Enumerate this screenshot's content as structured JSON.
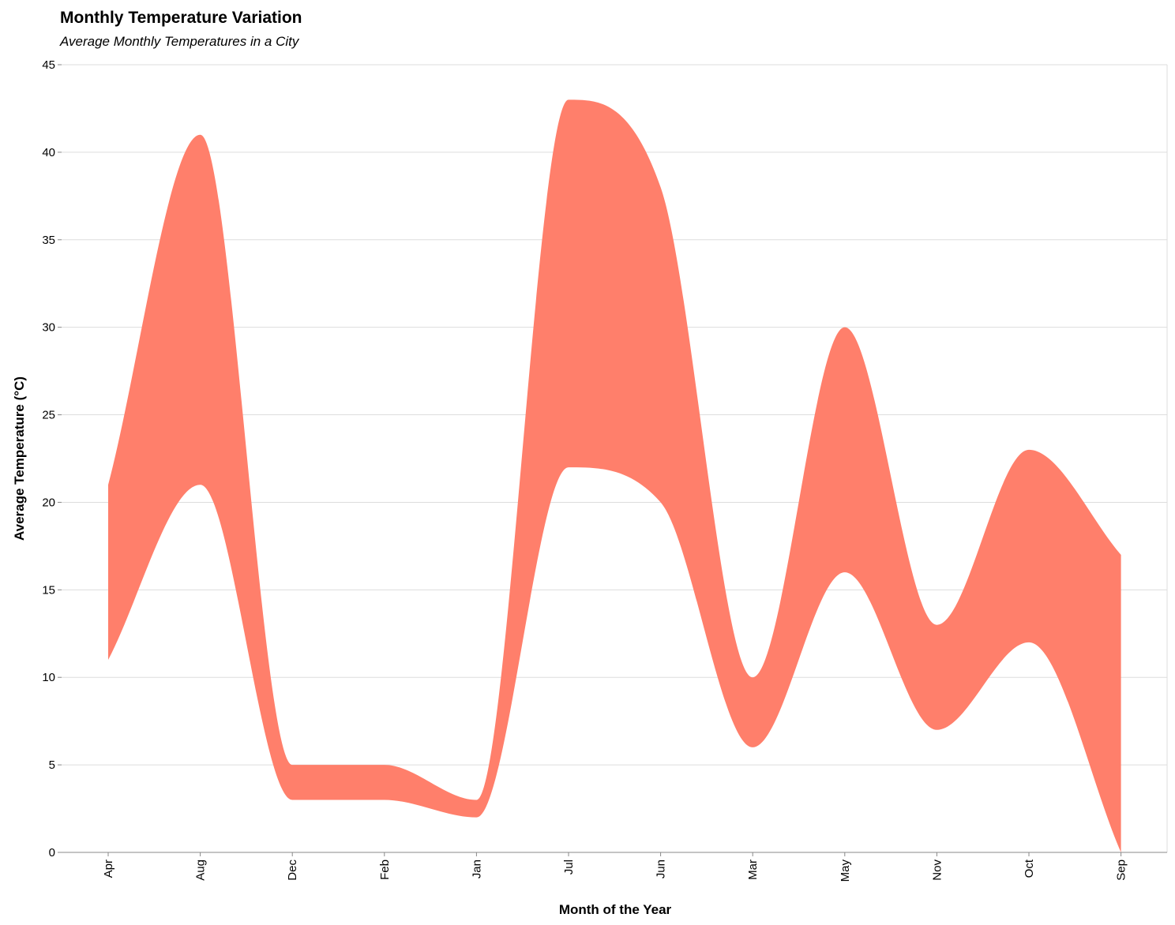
{
  "chart_data": {
    "type": "area",
    "title": "Monthly Temperature Variation",
    "subtitle": "Average Monthly Temperatures in a City",
    "xlabel": "Month of the Year",
    "ylabel": "Average Temperature (°C)",
    "categories": [
      "Apr",
      "Aug",
      "Dec",
      "Feb",
      "Jan",
      "Jul",
      "Jun",
      "Mar",
      "May",
      "Nov",
      "Oct",
      "Sep"
    ],
    "ylim": [
      0,
      45
    ],
    "yticks": [
      0,
      5,
      10,
      15,
      20,
      25,
      30,
      35,
      40,
      45
    ],
    "grid": true,
    "stacked": true,
    "series": [
      {
        "values": [
          11,
          21,
          3,
          3,
          2,
          22,
          20,
          6,
          16,
          7,
          12,
          0
        ]
      },
      {
        "values": [
          10,
          20,
          2,
          2,
          1,
          21,
          18,
          4,
          14,
          6,
          11,
          17
        ]
      }
    ],
    "colors": {
      "fill": "#ff7f6b",
      "grid": "#dddddd",
      "axis": "#888888"
    }
  }
}
